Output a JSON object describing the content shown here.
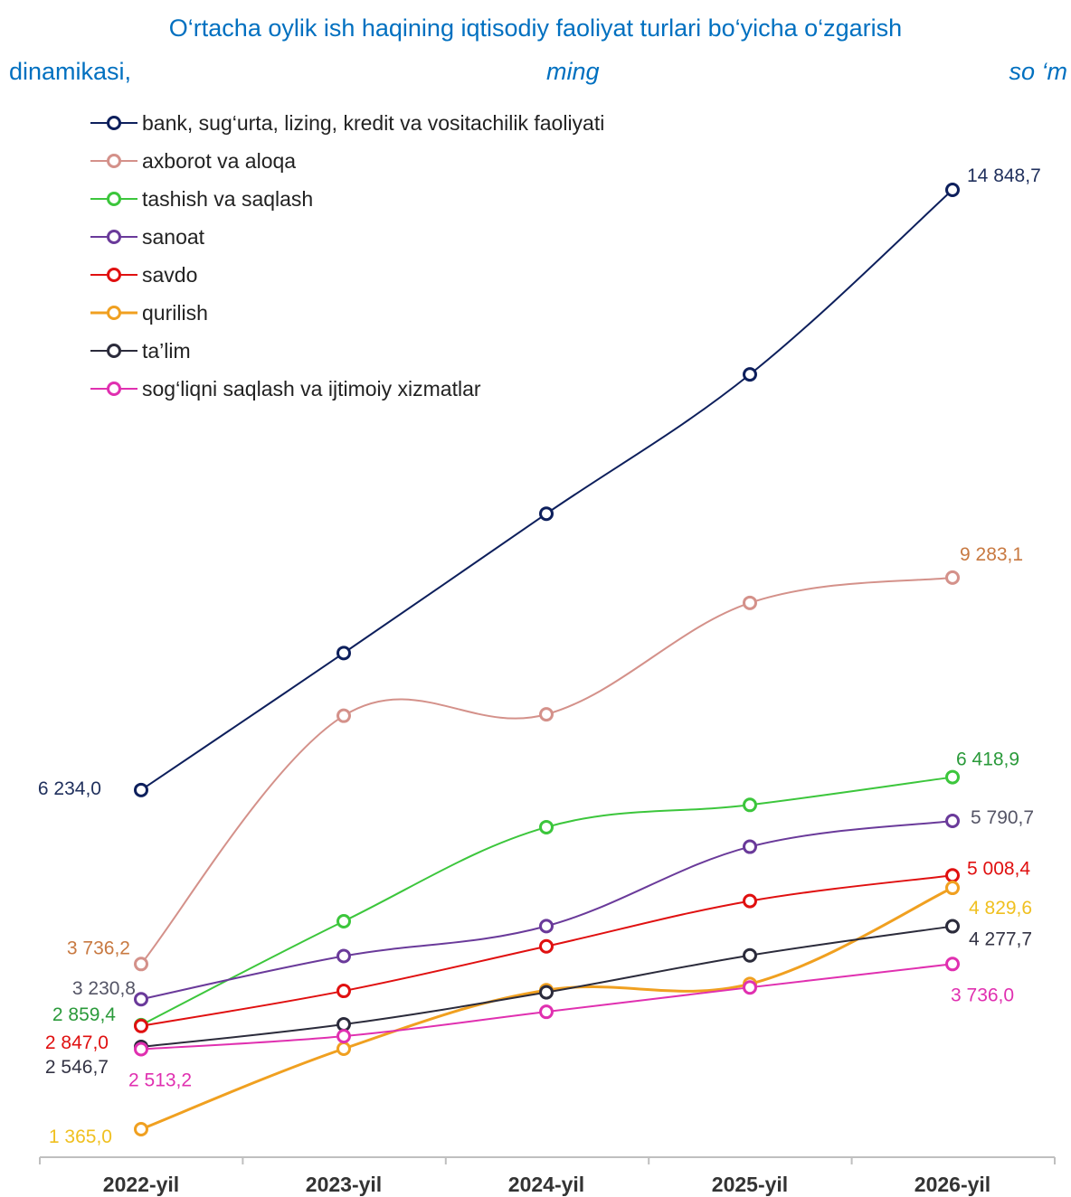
{
  "title": {
    "line1": "O‘rtacha oylik ish haqining iqtisodiy faoliyat turlari bo‘yicha o‘zgarish",
    "line2": "dinamikasi,",
    "unit_part1": "ming",
    "unit_part2": "so ‘m"
  },
  "chart_data": {
    "type": "line",
    "categories": [
      "2022-yil",
      "2023-yil",
      "2024-yil",
      "2025-yil",
      "2026-yil"
    ],
    "ylim": [
      1000,
      15500
    ],
    "grid": false,
    "legend_position": "top-left",
    "series": [
      {
        "name": "bank, sug‘urta, lizing, kredit va vositachilik faoliyati",
        "color": "#0d1f5c",
        "values": [
          6234.0,
          8200,
          10200,
          12200,
          14848.7
        ],
        "labels": [
          "6 234,0",
          "",
          "",
          "",
          "14 848,7"
        ],
        "label_color": "#1f2f5c"
      },
      {
        "name": "axborot va aloqa",
        "color": "#d4918a",
        "values": [
          3736.2,
          7300,
          7320,
          8920,
          9283.1
        ],
        "labels": [
          "3 736,2",
          "",
          "",
          "",
          "9 283,1"
        ],
        "label_color": "#c87941"
      },
      {
        "name": "tashish va saqlash",
        "color": "#3cc63c",
        "values": [
          2859.4,
          4350,
          5700,
          6020,
          6418.9
        ],
        "labels": [
          "2 859,4",
          "",
          "",
          "",
          "6 418,9"
        ],
        "label_color": "#2a9a3a"
      },
      {
        "name": "sanoat",
        "color": "#6a3a9a",
        "values": [
          3230.8,
          3850,
          4280,
          5420,
          5790.7
        ],
        "labels": [
          "3 230,8",
          "",
          "",
          "",
          "5 790,7"
        ],
        "label_color": "#555566"
      },
      {
        "name": "savdo",
        "color": "#e01010",
        "values": [
          2847.0,
          3350,
          3990,
          4640,
          5008.4
        ],
        "labels": [
          "2 847,0",
          "",
          "",
          "",
          "5 008,4"
        ],
        "label_color": "#e01010"
      },
      {
        "name": "qurilish",
        "color": "#f0a020",
        "values": [
          1365.0,
          2520,
          3360,
          3450,
          4829.6
        ],
        "labels": [
          "1 365,0",
          "",
          "",
          "",
          "4 829,6"
        ],
        "label_color": "#f0c020"
      },
      {
        "name": "ta’lim",
        "color": "#2b2b3b",
        "values": [
          2546.7,
          2870,
          3330,
          3860,
          4277.7
        ],
        "labels": [
          "2 546,7",
          "",
          "",
          "",
          "4 277,7"
        ],
        "label_color": "#333344"
      },
      {
        "name": "sog‘liqni saqlash va ijtimoiy xizmatlar",
        "color": "#e030b0",
        "values": [
          2513.2,
          2700,
          3050,
          3400,
          3736.0
        ],
        "labels": [
          "2 513,2",
          "",
          "",
          "",
          "3 736,0"
        ],
        "label_color": "#e030b0"
      }
    ]
  }
}
